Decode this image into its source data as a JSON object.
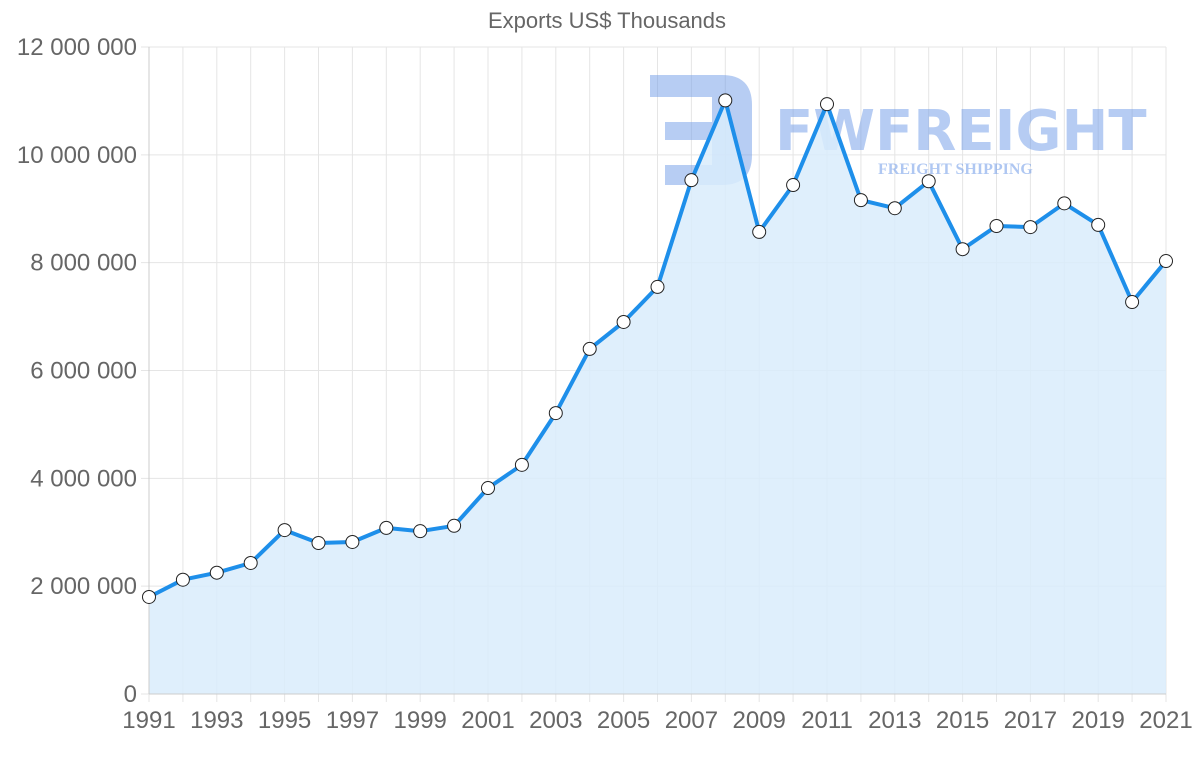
{
  "chart_data": {
    "type": "area",
    "title": "Exports US$ Thousands",
    "xlabel": "",
    "ylabel": "",
    "ylim": [
      0,
      12000000
    ],
    "grid": true,
    "legend": "none",
    "x": [
      1991,
      1992,
      1993,
      1994,
      1995,
      1996,
      1997,
      1998,
      1999,
      2000,
      2001,
      2002,
      2003,
      2004,
      2005,
      2006,
      2007,
      2008,
      2009,
      2010,
      2011,
      2012,
      2013,
      2014,
      2015,
      2016,
      2017,
      2018,
      2019,
      2020,
      2021
    ],
    "series": [
      {
        "name": "Exports US$ Thousands",
        "color": "#1E8FEA",
        "fill": "#D9ECFC",
        "values": [
          1800000,
          2120000,
          2250000,
          2430000,
          3040000,
          2800000,
          2820000,
          3080000,
          3020000,
          3120000,
          3820000,
          4250000,
          5210000,
          6400000,
          6900000,
          7550000,
          9530000,
          11010000,
          8570000,
          9440000,
          10940000,
          9160000,
          9010000,
          9510000,
          8250000,
          8680000,
          8660000,
          9100000,
          8700000,
          7270000,
          8030000
        ]
      }
    ],
    "y_ticks": [
      "0",
      "2 000 000",
      "4 000 000",
      "6 000 000",
      "8 000 000",
      "10 000 000",
      "12 000 000"
    ],
    "y_tick_values": [
      0,
      2000000,
      4000000,
      6000000,
      8000000,
      10000000,
      12000000
    ],
    "x_tick_labels": [
      "1991",
      "1993",
      "1995",
      "1997",
      "1999",
      "2001",
      "2003",
      "2005",
      "2007",
      "2009",
      "2011",
      "2013",
      "2015",
      "2017",
      "2019",
      "2021"
    ]
  },
  "watermark": {
    "brand": "FWFREIGHT",
    "tagline": "FREIGHT SHIPPING"
  },
  "colors": {
    "line": "#1E8FEA",
    "area": "#D9ECFC",
    "grid": "#e5e5e5",
    "text": "#666666"
  }
}
